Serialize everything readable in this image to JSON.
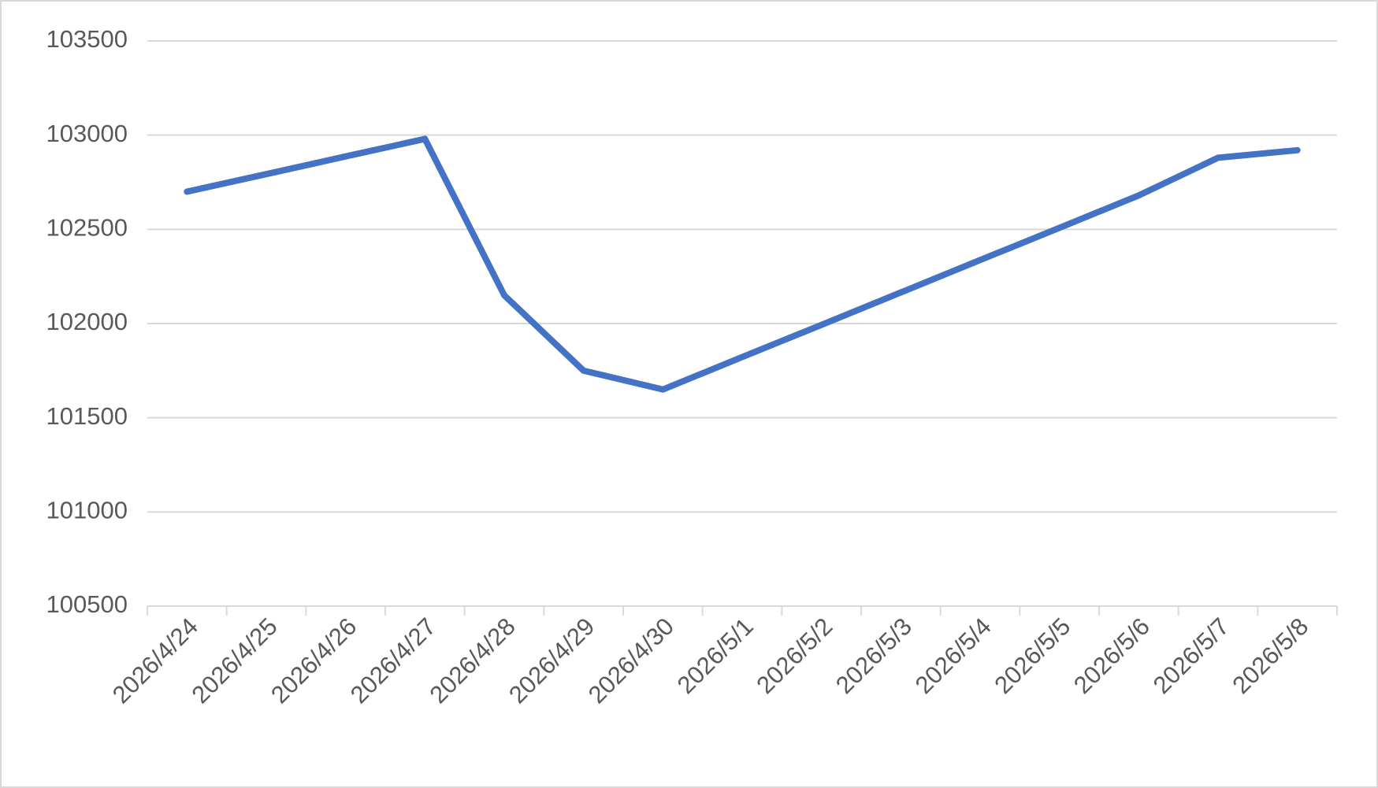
{
  "chart_data": {
    "type": "line",
    "categories": [
      "2026/4/24",
      "2026/4/25",
      "2026/4/26",
      "2026/4/27",
      "2026/4/28",
      "2026/4/29",
      "2026/4/30",
      "2026/5/1",
      "2026/5/2",
      "2026/5/3",
      "2026/5/4",
      "2026/5/5",
      "2026/5/6",
      "2026/5/7",
      "2026/5/8"
    ],
    "series": [
      {
        "color": "#4472c4",
        "values": [
          102700,
          102793,
          102887,
          102980,
          102150,
          101750,
          101650,
          101822,
          101993,
          102165,
          102337,
          102508,
          102680,
          102880,
          102920
        ]
      }
    ],
    "ylim": [
      100500,
      103500
    ],
    "yticks": [
      100500,
      101000,
      101500,
      102000,
      102500,
      103000,
      103500
    ],
    "grid": true
  }
}
